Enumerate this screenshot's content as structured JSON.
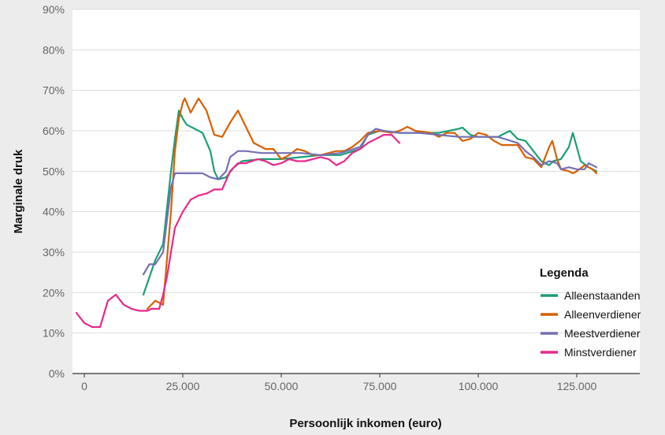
{
  "chart_data": {
    "type": "line",
    "title": "",
    "xlabel": "Persoonlijk inkomen (euro)",
    "ylabel": "Marginale druk",
    "xlim": [
      -3000,
      141000
    ],
    "ylim": [
      0,
      90
    ],
    "x_ticks": [
      {
        "value": 0,
        "label": "0"
      },
      {
        "value": 25000,
        "label": "25.000"
      },
      {
        "value": 50000,
        "label": "50.000"
      },
      {
        "value": 75000,
        "label": "75.000"
      },
      {
        "value": 100000,
        "label": "100.000"
      },
      {
        "value": 125000,
        "label": "125.000"
      }
    ],
    "y_ticks": [
      {
        "value": 0,
        "label": "0%"
      },
      {
        "value": 10,
        "label": "10%"
      },
      {
        "value": 20,
        "label": "20%"
      },
      {
        "value": 30,
        "label": "30%"
      },
      {
        "value": 40,
        "label": "40%"
      },
      {
        "value": 50,
        "label": "50%"
      },
      {
        "value": 60,
        "label": "60%"
      },
      {
        "value": 70,
        "label": "70%"
      },
      {
        "value": 80,
        "label": "80%"
      },
      {
        "value": 90,
        "label": "90%"
      }
    ],
    "grid": true,
    "legend": {
      "title": "Legenda",
      "position": "bottom-right"
    },
    "series": [
      {
        "name": "Alleenstaanden",
        "color": "#1b9e77",
        "points": [
          [
            15000,
            19.5
          ],
          [
            18000,
            28
          ],
          [
            20000,
            32
          ],
          [
            22000,
            50
          ],
          [
            23000,
            58
          ],
          [
            24000,
            65
          ],
          [
            25000,
            63
          ],
          [
            26000,
            61.5
          ],
          [
            28000,
            60.5
          ],
          [
            30000,
            59.5
          ],
          [
            32000,
            55
          ],
          [
            33000,
            50
          ],
          [
            34000,
            48
          ],
          [
            36000,
            48.5
          ],
          [
            38000,
            51
          ],
          [
            40000,
            52.5
          ],
          [
            45000,
            53
          ],
          [
            50000,
            53
          ],
          [
            55000,
            53.5
          ],
          [
            60000,
            54
          ],
          [
            65000,
            54
          ],
          [
            70000,
            55.5
          ],
          [
            72000,
            59
          ],
          [
            75000,
            60
          ],
          [
            80000,
            59.5
          ],
          [
            85000,
            59.5
          ],
          [
            90000,
            59.5
          ],
          [
            95000,
            60.5
          ],
          [
            96000,
            60.8
          ],
          [
            98000,
            59
          ],
          [
            100000,
            58.5
          ],
          [
            105000,
            58.5
          ],
          [
            108000,
            60
          ],
          [
            110000,
            58
          ],
          [
            112000,
            57.5
          ],
          [
            114000,
            55
          ],
          [
            116000,
            52.5
          ],
          [
            118000,
            51.5
          ],
          [
            119000,
            52.5
          ],
          [
            121000,
            53
          ],
          [
            123000,
            56
          ],
          [
            124000,
            59.5
          ],
          [
            125000,
            56
          ],
          [
            126000,
            52.5
          ],
          [
            128000,
            51
          ],
          [
            130000,
            50
          ]
        ]
      },
      {
        "name": "Alleenverdiener",
        "color": "#d95f02",
        "points": [
          [
            16000,
            16
          ],
          [
            18000,
            18
          ],
          [
            20000,
            17
          ],
          [
            22000,
            40
          ],
          [
            23000,
            55
          ],
          [
            24000,
            63
          ],
          [
            25000,
            67
          ],
          [
            25500,
            68
          ],
          [
            27000,
            64.5
          ],
          [
            29000,
            68
          ],
          [
            31000,
            65
          ],
          [
            33000,
            59
          ],
          [
            35000,
            58.5
          ],
          [
            37000,
            62
          ],
          [
            39000,
            65
          ],
          [
            41000,
            61
          ],
          [
            43000,
            57
          ],
          [
            46000,
            55.5
          ],
          [
            48000,
            55.5
          ],
          [
            50000,
            53
          ],
          [
            52000,
            54
          ],
          [
            54000,
            55.5
          ],
          [
            56000,
            55
          ],
          [
            58000,
            54
          ],
          [
            60000,
            54
          ],
          [
            62000,
            54.5
          ],
          [
            64000,
            55
          ],
          [
            66000,
            55
          ],
          [
            68000,
            56
          ],
          [
            70000,
            57.5
          ],
          [
            72000,
            59.5
          ],
          [
            75000,
            60
          ],
          [
            78000,
            59.5
          ],
          [
            80000,
            60
          ],
          [
            82000,
            61
          ],
          [
            84000,
            60
          ],
          [
            88000,
            59.5
          ],
          [
            90000,
            58.5
          ],
          [
            92000,
            59.5
          ],
          [
            94000,
            59.5
          ],
          [
            96000,
            57.5
          ],
          [
            98000,
            58
          ],
          [
            100000,
            59.5
          ],
          [
            102000,
            59
          ],
          [
            104000,
            57.5
          ],
          [
            106000,
            56.5
          ],
          [
            108000,
            56.5
          ],
          [
            110000,
            56.5
          ],
          [
            112000,
            53.5
          ],
          [
            114000,
            53
          ],
          [
            116000,
            51
          ],
          [
            118000,
            56
          ],
          [
            118800,
            57.5
          ],
          [
            120000,
            53
          ],
          [
            121000,
            50.5
          ],
          [
            123000,
            50
          ],
          [
            124000,
            49.5
          ],
          [
            125000,
            50
          ],
          [
            127000,
            51.5
          ],
          [
            129000,
            50.5
          ],
          [
            130000,
            49.5
          ]
        ]
      },
      {
        "name": "Meestverdiener",
        "color": "#7570b3",
        "points": [
          [
            15000,
            24.5
          ],
          [
            16500,
            27
          ],
          [
            18000,
            27
          ],
          [
            20000,
            30
          ],
          [
            22000,
            46
          ],
          [
            23000,
            49.5
          ],
          [
            25000,
            49.5
          ],
          [
            30000,
            49.5
          ],
          [
            32000,
            48.5
          ],
          [
            34000,
            48
          ],
          [
            36000,
            50
          ],
          [
            37000,
            53.5
          ],
          [
            39000,
            55
          ],
          [
            41000,
            55
          ],
          [
            45000,
            54.5
          ],
          [
            50000,
            54.5
          ],
          [
            55000,
            54.5
          ],
          [
            60000,
            54
          ],
          [
            65000,
            54.5
          ],
          [
            70000,
            56
          ],
          [
            72000,
            59
          ],
          [
            74000,
            60.5
          ],
          [
            76000,
            60
          ],
          [
            80000,
            59.5
          ],
          [
            85000,
            59.5
          ],
          [
            90000,
            59
          ],
          [
            95000,
            58.5
          ],
          [
            100000,
            58.5
          ],
          [
            105000,
            58.5
          ],
          [
            110000,
            57
          ],
          [
            112000,
            55
          ],
          [
            114000,
            53.5
          ],
          [
            116000,
            51.5
          ],
          [
            118000,
            52.5
          ],
          [
            120000,
            52
          ],
          [
            121000,
            50.5
          ],
          [
            123000,
            51
          ],
          [
            125000,
            50.5
          ],
          [
            127000,
            50.5
          ],
          [
            128000,
            52
          ],
          [
            130000,
            51
          ]
        ]
      },
      {
        "name": "Minstverdiener",
        "color": "#e7298a",
        "points": [
          [
            -2000,
            15
          ],
          [
            0,
            12.5
          ],
          [
            2000,
            11.5
          ],
          [
            4000,
            11.5
          ],
          [
            6000,
            18
          ],
          [
            8000,
            19.5
          ],
          [
            10000,
            17
          ],
          [
            12000,
            16
          ],
          [
            14000,
            15.5
          ],
          [
            16000,
            15.5
          ],
          [
            17000,
            16
          ],
          [
            19000,
            16
          ],
          [
            20000,
            19.5
          ],
          [
            21000,
            24
          ],
          [
            23000,
            36
          ],
          [
            25000,
            40
          ],
          [
            27000,
            43
          ],
          [
            29000,
            44
          ],
          [
            31000,
            44.5
          ],
          [
            33000,
            45.5
          ],
          [
            35000,
            45.5
          ],
          [
            37000,
            50
          ],
          [
            39000,
            52
          ],
          [
            41000,
            52
          ],
          [
            44000,
            53
          ],
          [
            46000,
            52.5
          ],
          [
            48000,
            51.5
          ],
          [
            50000,
            52
          ],
          [
            52000,
            53
          ],
          [
            54000,
            52.5
          ],
          [
            56000,
            52.5
          ],
          [
            58000,
            53
          ],
          [
            60000,
            53.5
          ],
          [
            62000,
            53
          ],
          [
            64000,
            51.5
          ],
          [
            66000,
            52.5
          ],
          [
            68000,
            54.5
          ],
          [
            70000,
            55.5
          ],
          [
            72000,
            57
          ],
          [
            74000,
            58
          ],
          [
            76000,
            59
          ],
          [
            78000,
            59
          ],
          [
            80000,
            57
          ]
        ]
      }
    ]
  }
}
